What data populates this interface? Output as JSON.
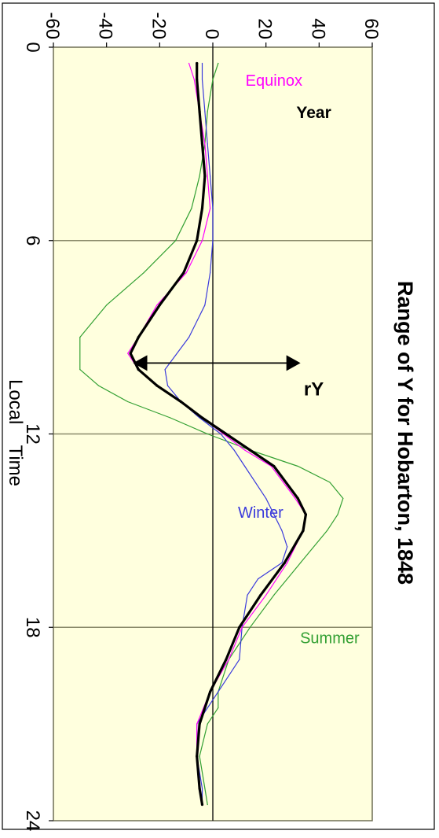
{
  "chart_data": {
    "type": "line",
    "title": "Range of Y for Hobarton, 1848",
    "xlabel": "Local    Time",
    "ylabel": "",
    "xlim": [
      0,
      24
    ],
    "ylim": [
      -60,
      60
    ],
    "x_ticks": [
      "0",
      "6",
      "12",
      "18",
      "24"
    ],
    "y_ticks": [
      "60",
      "40",
      "20",
      "0",
      "-20",
      "-40",
      "-60"
    ],
    "grid": "vertical gridlines at 6, 12, 18",
    "orientation": "rotated 90 degrees counter-clockwise",
    "series": [
      {
        "name": "Summer",
        "color": "#33a033",
        "width": 1.2,
        "x": [
          0.5,
          1,
          2,
          3,
          4,
          5,
          6,
          7,
          8,
          9,
          10,
          10.5,
          11,
          11.5,
          12,
          12.5,
          13,
          13.5,
          14,
          14.5,
          15,
          16,
          17,
          18,
          19,
          20,
          20.5,
          21,
          22,
          23,
          23.5
        ],
        "y": [
          2,
          0,
          -2,
          -3,
          -5,
          -8,
          -14,
          -26,
          -40,
          -50,
          -50,
          -43,
          -32,
          -16,
          -2,
          14,
          32,
          44,
          49,
          47,
          43,
          33,
          23,
          14,
          6,
          2,
          2,
          -2,
          -5,
          -3,
          -2
        ]
      },
      {
        "name": "Winter",
        "color": "#3a3adc",
        "width": 1.2,
        "x": [
          0.5,
          1,
          2,
          3,
          4,
          5,
          6,
          7,
          8,
          9,
          10,
          10.5,
          11,
          11.5,
          12,
          12.5,
          13,
          14,
          15,
          15.5,
          16,
          16.5,
          17,
          18,
          19,
          20,
          21,
          22,
          23,
          23.5
        ],
        "y": [
          -4,
          -4,
          -3,
          -2,
          -1,
          0,
          0,
          -1,
          -3,
          -9,
          -18,
          -17,
          -12,
          -5,
          3,
          8,
          12,
          20,
          26,
          28,
          26,
          17,
          13,
          11,
          10,
          2,
          -6,
          -6,
          -4,
          -4
        ]
      },
      {
        "name": "Equinox",
        "color": "#ff00ff",
        "width": 1.2,
        "x": [
          0.5,
          1,
          2,
          3,
          4,
          5,
          6,
          7,
          8,
          9,
          9.5,
          10,
          10.5,
          11,
          11.5,
          12,
          12.5,
          13,
          14,
          14.5,
          15,
          16,
          17,
          18,
          19,
          20,
          21,
          22,
          23,
          23.5
        ],
        "y": [
          -9,
          -7,
          -5,
          -3,
          -2,
          -1,
          -4,
          -10,
          -21,
          -28,
          -32,
          -28,
          -21,
          -12,
          -4,
          4,
          12,
          22,
          31,
          35,
          34,
          28,
          20,
          11,
          6,
          -1,
          -6,
          -6,
          -5,
          -4
        ]
      },
      {
        "name": "Year",
        "color": "#000000",
        "width": 3.2,
        "x": [
          0.5,
          1,
          2,
          3,
          4,
          5,
          6,
          7,
          8,
          9,
          9.5,
          10,
          10.5,
          11,
          11.5,
          12,
          12.5,
          13,
          14,
          14.5,
          15,
          16,
          17,
          18,
          19,
          20,
          21,
          22,
          23,
          23.5
        ],
        "y": [
          -6,
          -6,
          -5,
          -4,
          -3,
          -4,
          -6,
          -11,
          -20,
          -28,
          -31,
          -28,
          -21,
          -12,
          -4,
          5,
          14,
          23,
          32,
          35,
          34,
          27,
          18,
          10,
          5,
          -1,
          -5,
          -6,
          -5,
          -4
        ]
      }
    ],
    "series_labels": [
      {
        "text": "Summer",
        "series": "Summer",
        "x": 18.5,
        "y": 44,
        "rot": -90,
        "weight": "normal",
        "size": 20
      },
      {
        "text": "Winter",
        "series": "Winter",
        "x": 14.6,
        "y": 18,
        "rot": -90,
        "weight": "normal",
        "size": 20
      },
      {
        "text": "Equinox",
        "series": "Equinox",
        "x": 1.2,
        "y": 23,
        "rot": -90,
        "weight": "normal",
        "size": 20
      },
      {
        "text": "Year",
        "series": "Year",
        "x": 2.2,
        "y": 38,
        "rot": -90,
        "weight": "bold",
        "size": 21
      }
    ],
    "annotation": {
      "text": "rY",
      "x_at": 9.8,
      "y_top": 33,
      "y_bottom": -30,
      "label_x": 10.8,
      "label_y": 38
    }
  }
}
